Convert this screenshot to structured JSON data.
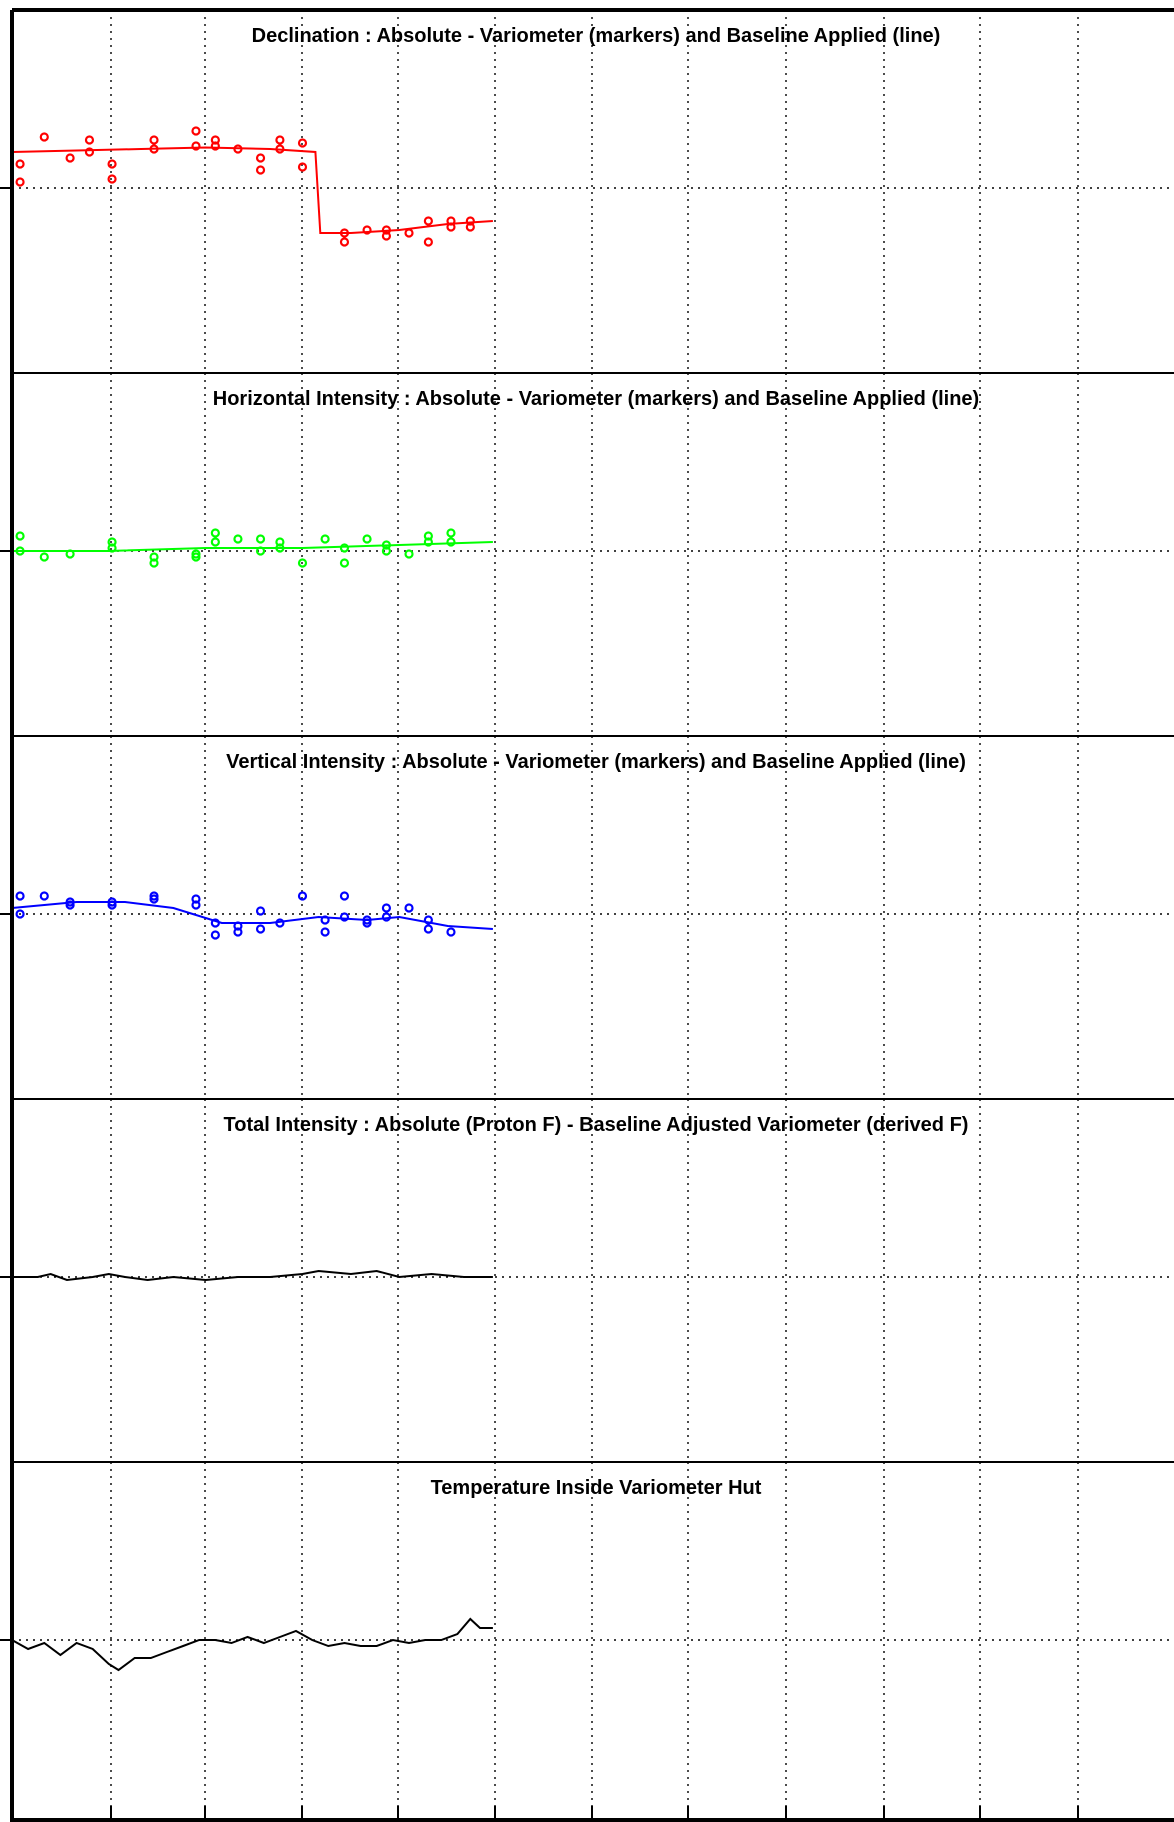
{
  "chart_data": [
    {
      "type": "scatter",
      "title": "Declination : Absolute - Variometer (markers) and Baseline Applied (line)",
      "xlabel": "",
      "ylabel": "",
      "xlim": [
        0,
        36
      ],
      "ylim": [
        -1,
        1
      ],
      "grid": true,
      "color": "#ff0000",
      "markers": [
        {
          "x": 0.25,
          "y": 0.02
        },
        {
          "x": 0.25,
          "y": 0.08
        },
        {
          "x": 1.0,
          "y": 0.17
        },
        {
          "x": 1.8,
          "y": 0.1
        },
        {
          "x": 2.4,
          "y": 0.16
        },
        {
          "x": 2.4,
          "y": 0.12
        },
        {
          "x": 3.1,
          "y": 0.03
        },
        {
          "x": 3.1,
          "y": 0.08
        },
        {
          "x": 4.4,
          "y": 0.16
        },
        {
          "x": 4.4,
          "y": 0.13
        },
        {
          "x": 5.7,
          "y": 0.19
        },
        {
          "x": 5.7,
          "y": 0.14
        },
        {
          "x": 6.3,
          "y": 0.16
        },
        {
          "x": 6.3,
          "y": 0.14
        },
        {
          "x": 7.0,
          "y": 0.13
        },
        {
          "x": 7.7,
          "y": 0.06
        },
        {
          "x": 7.7,
          "y": 0.1
        },
        {
          "x": 8.3,
          "y": 0.16
        },
        {
          "x": 8.3,
          "y": 0.13
        },
        {
          "x": 9.0,
          "y": 0.15
        },
        {
          "x": 9.0,
          "y": 0.07
        },
        {
          "x": 10.3,
          "y": -0.15
        },
        {
          "x": 10.3,
          "y": -0.18
        },
        {
          "x": 11.0,
          "y": -0.14
        },
        {
          "x": 11.6,
          "y": -0.14
        },
        {
          "x": 11.6,
          "y": -0.16
        },
        {
          "x": 12.3,
          "y": -0.15
        },
        {
          "x": 12.9,
          "y": -0.11
        },
        {
          "x": 12.9,
          "y": -0.18
        },
        {
          "x": 13.6,
          "y": -0.11
        },
        {
          "x": 13.6,
          "y": -0.13
        },
        {
          "x": 14.2,
          "y": -0.11
        },
        {
          "x": 14.2,
          "y": -0.13
        }
      ],
      "line": [
        {
          "x": 0,
          "y": 0.12
        },
        {
          "x": 2,
          "y": 0.125
        },
        {
          "x": 4,
          "y": 0.13
        },
        {
          "x": 6,
          "y": 0.135
        },
        {
          "x": 8,
          "y": 0.13
        },
        {
          "x": 9.4,
          "y": 0.12
        },
        {
          "x": 9.55,
          "y": -0.15
        },
        {
          "x": 10.5,
          "y": -0.15
        },
        {
          "x": 12,
          "y": -0.14
        },
        {
          "x": 13.5,
          "y": -0.12
        },
        {
          "x": 14.9,
          "y": -0.11
        }
      ]
    },
    {
      "type": "scatter",
      "title": "Horizontal Intensity : Absolute - Variometer (markers) and Baseline Applied (line)",
      "xlabel": "",
      "ylabel": "",
      "xlim": [
        0,
        36
      ],
      "ylim": [
        -1,
        1
      ],
      "grid": true,
      "color": "#00ff00",
      "markers": [
        {
          "x": 0.25,
          "y": 0.05
        },
        {
          "x": 0.25,
          "y": 0.0
        },
        {
          "x": 1.0,
          "y": -0.02
        },
        {
          "x": 1.8,
          "y": -0.01
        },
        {
          "x": 3.1,
          "y": 0.03
        },
        {
          "x": 3.1,
          "y": 0.01
        },
        {
          "x": 4.4,
          "y": -0.02
        },
        {
          "x": 4.4,
          "y": -0.04
        },
        {
          "x": 5.7,
          "y": -0.01
        },
        {
          "x": 5.7,
          "y": -0.02
        },
        {
          "x": 6.3,
          "y": 0.06
        },
        {
          "x": 6.3,
          "y": 0.03
        },
        {
          "x": 7.0,
          "y": 0.04
        },
        {
          "x": 7.7,
          "y": 0.04
        },
        {
          "x": 7.7,
          "y": 0.0
        },
        {
          "x": 8.3,
          "y": 0.03
        },
        {
          "x": 8.3,
          "y": 0.01
        },
        {
          "x": 9.0,
          "y": -0.04
        },
        {
          "x": 9.7,
          "y": 0.04
        },
        {
          "x": 10.3,
          "y": 0.01
        },
        {
          "x": 10.3,
          "y": -0.04
        },
        {
          "x": 11.0,
          "y": 0.04
        },
        {
          "x": 11.6,
          "y": 0.02
        },
        {
          "x": 11.6,
          "y": 0.0
        },
        {
          "x": 12.3,
          "y": -0.01
        },
        {
          "x": 12.9,
          "y": 0.05
        },
        {
          "x": 12.9,
          "y": 0.03
        },
        {
          "x": 13.6,
          "y": 0.06
        },
        {
          "x": 13.6,
          "y": 0.03
        }
      ],
      "line": [
        {
          "x": 0,
          "y": 0.0
        },
        {
          "x": 3,
          "y": 0.0
        },
        {
          "x": 6,
          "y": 0.01
        },
        {
          "x": 9,
          "y": 0.01
        },
        {
          "x": 12,
          "y": 0.02
        },
        {
          "x": 14.9,
          "y": 0.03
        }
      ]
    },
    {
      "type": "scatter",
      "title": "Vertical Intensity : Absolute - Variometer (markers) and Baseline Applied (line)",
      "xlabel": "",
      "ylabel": "",
      "xlim": [
        0,
        36
      ],
      "ylim": [
        -1,
        1
      ],
      "grid": true,
      "color": "#0000ff",
      "markers": [
        {
          "x": 0.25,
          "y": 0.06
        },
        {
          "x": 0.25,
          "y": 0.0
        },
        {
          "x": 1.0,
          "y": 0.06
        },
        {
          "x": 1.8,
          "y": 0.04
        },
        {
          "x": 1.8,
          "y": 0.03
        },
        {
          "x": 3.1,
          "y": 0.04
        },
        {
          "x": 3.1,
          "y": 0.03
        },
        {
          "x": 4.4,
          "y": 0.06
        },
        {
          "x": 4.4,
          "y": 0.05
        },
        {
          "x": 5.7,
          "y": 0.05
        },
        {
          "x": 5.7,
          "y": 0.03
        },
        {
          "x": 6.3,
          "y": -0.03
        },
        {
          "x": 6.3,
          "y": -0.07
        },
        {
          "x": 7.0,
          "y": -0.04
        },
        {
          "x": 7.0,
          "y": -0.06
        },
        {
          "x": 7.7,
          "y": 0.01
        },
        {
          "x": 7.7,
          "y": -0.05
        },
        {
          "x": 8.3,
          "y": -0.03
        },
        {
          "x": 9.0,
          "y": 0.06
        },
        {
          "x": 9.7,
          "y": -0.02
        },
        {
          "x": 9.7,
          "y": -0.06
        },
        {
          "x": 10.3,
          "y": 0.06
        },
        {
          "x": 10.3,
          "y": -0.01
        },
        {
          "x": 11.0,
          "y": -0.02
        },
        {
          "x": 11.0,
          "y": -0.03
        },
        {
          "x": 11.6,
          "y": 0.02
        },
        {
          "x": 11.6,
          "y": -0.01
        },
        {
          "x": 12.3,
          "y": 0.02
        },
        {
          "x": 12.9,
          "y": -0.02
        },
        {
          "x": 12.9,
          "y": -0.05
        },
        {
          "x": 13.6,
          "y": -0.06
        }
      ],
      "line": [
        {
          "x": 0,
          "y": 0.02
        },
        {
          "x": 2,
          "y": 0.04
        },
        {
          "x": 3.5,
          "y": 0.04
        },
        {
          "x": 5,
          "y": 0.02
        },
        {
          "x": 6.5,
          "y": -0.03
        },
        {
          "x": 8,
          "y": -0.03
        },
        {
          "x": 9.5,
          "y": -0.01
        },
        {
          "x": 11,
          "y": -0.02
        },
        {
          "x": 12,
          "y": -0.01
        },
        {
          "x": 13.5,
          "y": -0.04
        },
        {
          "x": 14.9,
          "y": -0.05
        }
      ]
    },
    {
      "type": "line",
      "title": "Total Intensity : Absolute (Proton F) - Baseline Adjusted Variometer (derived F)",
      "xlabel": "",
      "ylabel": "",
      "xlim": [
        0,
        36
      ],
      "ylim": [
        -1,
        1
      ],
      "grid": true,
      "color": "#000000",
      "line": [
        {
          "x": 0,
          "y": 0.0
        },
        {
          "x": 0.8,
          "y": 0.0
        },
        {
          "x": 1.2,
          "y": 0.01
        },
        {
          "x": 1.7,
          "y": -0.01
        },
        {
          "x": 2.5,
          "y": 0.0
        },
        {
          "x": 3.0,
          "y": 0.01
        },
        {
          "x": 3.5,
          "y": 0.0
        },
        {
          "x": 4.2,
          "y": -0.01
        },
        {
          "x": 5.0,
          "y": 0.0
        },
        {
          "x": 6.0,
          "y": -0.01
        },
        {
          "x": 7.0,
          "y": 0.0
        },
        {
          "x": 8.0,
          "y": 0.0
        },
        {
          "x": 9.0,
          "y": 0.01
        },
        {
          "x": 9.5,
          "y": 0.02
        },
        {
          "x": 10.5,
          "y": 0.01
        },
        {
          "x": 11.3,
          "y": 0.02
        },
        {
          "x": 12.0,
          "y": 0.0
        },
        {
          "x": 13.0,
          "y": 0.01
        },
        {
          "x": 14.0,
          "y": 0.0
        },
        {
          "x": 14.9,
          "y": 0.0
        }
      ]
    },
    {
      "type": "line",
      "title": "Temperature Inside Variometer Hut",
      "xlabel": "",
      "ylabel": "",
      "xlim": [
        0,
        36
      ],
      "ylim": [
        -1,
        1
      ],
      "grid": true,
      "color": "#000000",
      "line": [
        {
          "x": 0,
          "y": 0.0
        },
        {
          "x": 0.5,
          "y": -0.03
        },
        {
          "x": 1.0,
          "y": -0.01
        },
        {
          "x": 1.5,
          "y": -0.05
        },
        {
          "x": 2.0,
          "y": -0.01
        },
        {
          "x": 2.5,
          "y": -0.03
        },
        {
          "x": 3.0,
          "y": -0.08
        },
        {
          "x": 3.3,
          "y": -0.1
        },
        {
          "x": 3.8,
          "y": -0.06
        },
        {
          "x": 4.3,
          "y": -0.06
        },
        {
          "x": 4.8,
          "y": -0.04
        },
        {
          "x": 5.3,
          "y": -0.02
        },
        {
          "x": 5.8,
          "y": 0.0
        },
        {
          "x": 6.3,
          "y": 0.0
        },
        {
          "x": 6.8,
          "y": -0.01
        },
        {
          "x": 7.3,
          "y": 0.01
        },
        {
          "x": 7.8,
          "y": -0.01
        },
        {
          "x": 8.3,
          "y": 0.01
        },
        {
          "x": 8.8,
          "y": 0.03
        },
        {
          "x": 9.3,
          "y": 0.0
        },
        {
          "x": 9.8,
          "y": -0.02
        },
        {
          "x": 10.3,
          "y": -0.01
        },
        {
          "x": 10.8,
          "y": -0.02
        },
        {
          "x": 11.3,
          "y": -0.02
        },
        {
          "x": 11.8,
          "y": 0.0
        },
        {
          "x": 12.3,
          "y": -0.01
        },
        {
          "x": 12.8,
          "y": 0.0
        },
        {
          "x": 13.3,
          "y": 0.0
        },
        {
          "x": 13.8,
          "y": 0.02
        },
        {
          "x": 14.2,
          "y": 0.07
        },
        {
          "x": 14.5,
          "y": 0.04
        },
        {
          "x": 14.9,
          "y": 0.04
        }
      ]
    }
  ]
}
